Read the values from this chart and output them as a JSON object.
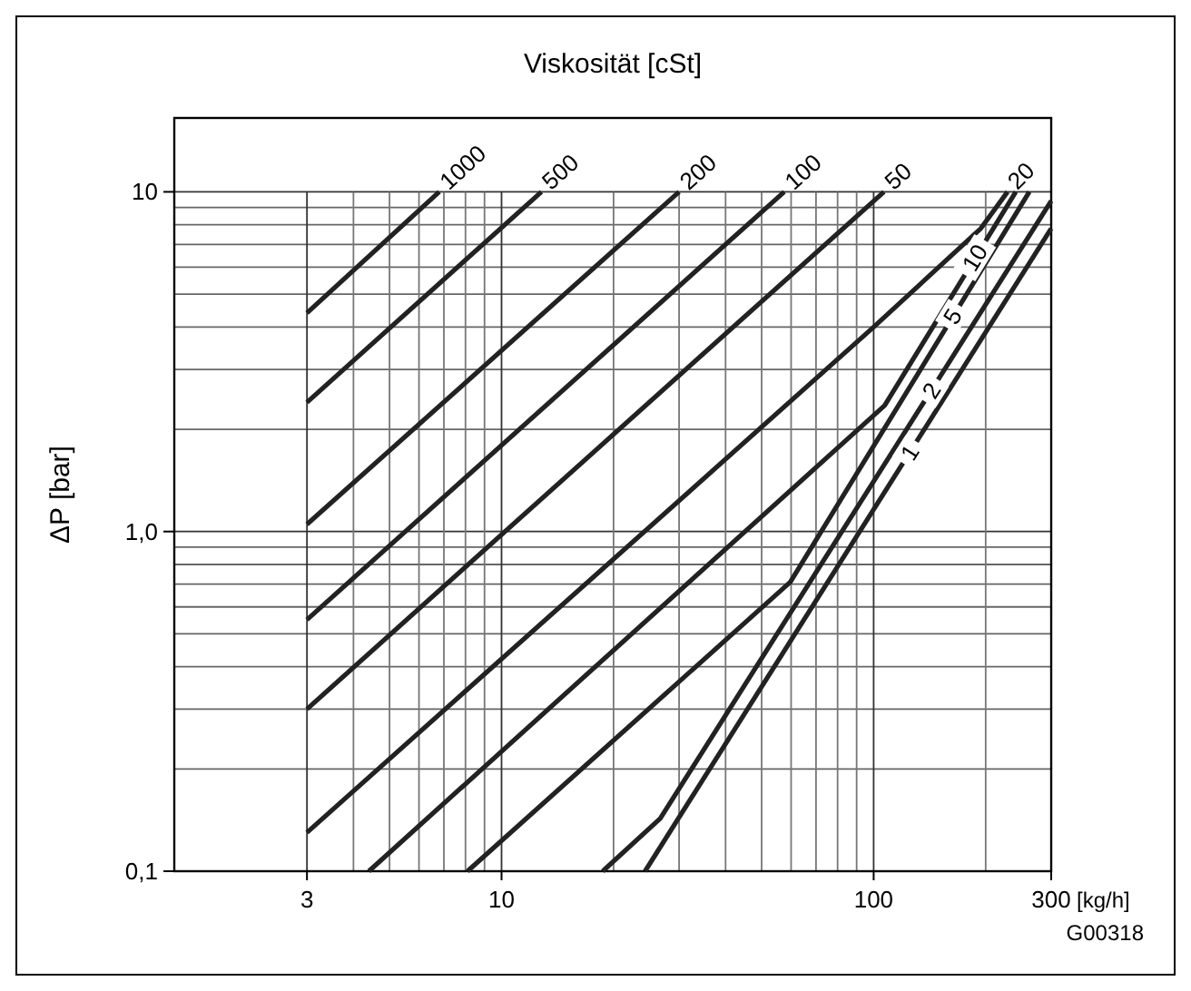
{
  "chart_data": {
    "type": "line",
    "title": "Viskosität [cSt]",
    "xlabel": "[kg/h]",
    "ylabel": "ΔP [bar]",
    "log": "xy",
    "grid": true,
    "xlim": [
      1.32,
      300
    ],
    "ylim": [
      0.1,
      16.5
    ],
    "xticks": [
      3,
      {
        "value": 4,
        "label": null
      },
      {
        "value": 5,
        "label": null
      },
      {
        "value": 6,
        "label": null
      },
      {
        "value": 7,
        "label": null
      },
      {
        "value": 8,
        "label": null
      },
      {
        "value": 9,
        "label": null
      },
      10,
      {
        "value": 20,
        "label": null
      },
      {
        "value": 30,
        "label": null
      },
      {
        "value": 40,
        "label": null
      },
      {
        "value": 50,
        "label": null
      },
      {
        "value": 60,
        "label": null
      },
      {
        "value": 70,
        "label": null
      },
      {
        "value": 80,
        "label": null
      },
      {
        "value": 90,
        "label": null
      },
      100,
      {
        "value": 200,
        "label": null
      },
      300
    ],
    "yticks": [
      {
        "value": 0.1,
        "label": "0,1"
      },
      {
        "value": 0.2,
        "label": null
      },
      {
        "value": 0.3,
        "label": null
      },
      {
        "value": 0.4,
        "label": null
      },
      {
        "value": 0.5,
        "label": null
      },
      {
        "value": 0.6,
        "label": null
      },
      {
        "value": 0.7,
        "label": null
      },
      {
        "value": 0.8,
        "label": null
      },
      {
        "value": 0.9,
        "label": null
      },
      {
        "value": 1,
        "label": "1,0"
      },
      {
        "value": 2,
        "label": null
      },
      {
        "value": 3,
        "label": null
      },
      {
        "value": 4,
        "label": null
      },
      {
        "value": 5,
        "label": null
      },
      {
        "value": 6,
        "label": null
      },
      {
        "value": 7,
        "label": null
      },
      {
        "value": 8,
        "label": null
      },
      {
        "value": 9,
        "label": null
      },
      10
    ],
    "series": [
      {
        "color": "#222222",
        "x": [
          3,
          6.8
        ],
        "values": [
          4.4,
          10
        ]
      },
      {
        "color": "#222222",
        "x": [
          3,
          12.8
        ],
        "values": [
          2.4,
          10
        ]
      },
      {
        "color": "#222222",
        "x": [
          3,
          30
        ],
        "values": [
          1.05,
          10
        ]
      },
      {
        "color": "#222222",
        "x": [
          3,
          57.5
        ],
        "values": [
          0.55,
          10
        ]
      },
      {
        "color": "#222222",
        "x": [
          3,
          106.6
        ],
        "values": [
          0.3,
          10
        ]
      },
      {
        "color": "#222222",
        "x": [
          3,
          100,
          194,
          229
        ],
        "values": [
          0.13,
          4,
          7.8,
          10
        ]
      },
      {
        "color": "#222222",
        "x": [
          4.4,
          107,
          241
        ],
        "values": [
          0.1,
          2.35,
          10
        ]
      },
      {
        "color": "#222222",
        "x": [
          8.1,
          59.7,
          262
        ],
        "values": [
          0.1,
          0.71,
          10
        ]
      },
      {
        "color": "#222222",
        "x": [
          18.7,
          26.7,
          300
        ],
        "values": [
          0.1,
          0.143,
          9.4
        ]
      },
      {
        "color": "#222222",
        "x": [
          24.3,
          300
        ],
        "values": [
          0.1,
          7.8
        ]
      }
    ],
    "annotations": [
      {
        "text": "1000",
        "x": 6.8,
        "y": 10
      },
      {
        "text": "500",
        "x": 12.8,
        "y": 10
      },
      {
        "text": "200",
        "x": 30,
        "y": 10
      },
      {
        "text": "100",
        "x": 57.5,
        "y": 10
      },
      {
        "text": "50",
        "x": 106.6,
        "y": 10
      },
      {
        "text": "20",
        "x": 229,
        "y": 10
      },
      {
        "text": "10",
        "x": 187,
        "y": 6.4
      },
      {
        "text": "5",
        "x": 163,
        "y": 4.3
      },
      {
        "text": "2",
        "x": 143,
        "y": 2.6
      },
      {
        "text": "1",
        "x": 125,
        "y": 1.71
      },
      "G00318"
    ]
  }
}
